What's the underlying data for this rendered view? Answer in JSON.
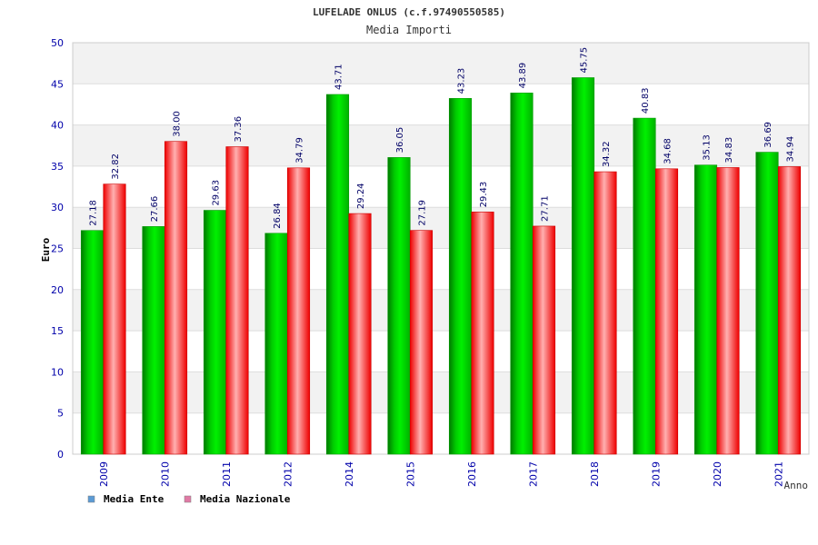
{
  "chart_data": {
    "type": "bar",
    "title": "LUFELADE ONLUS (c.f.97490550585)",
    "subtitle": "Media Importi",
    "ylabel": "Euro",
    "xlabel": "Anno",
    "ylim": [
      0,
      50
    ],
    "yticks": [
      0,
      5,
      10,
      15,
      20,
      25,
      30,
      35,
      40,
      45,
      50
    ],
    "categories": [
      "2009",
      "2010",
      "2011",
      "2012",
      "2014",
      "2015",
      "2016",
      "2017",
      "2018",
      "2019",
      "2020",
      "2021"
    ],
    "series": [
      {
        "name": "Media Ente",
        "values": [
          27.18,
          27.66,
          29.63,
          26.84,
          43.71,
          36.05,
          43.23,
          43.89,
          45.75,
          40.83,
          35.13,
          36.69
        ],
        "labels": [
          "27.18",
          "27.66",
          "29.63",
          "26.84",
          "43.71",
          "36.05",
          "43.23",
          "43.89",
          "45.75",
          "40.83",
          "35.13",
          "36.69"
        ]
      },
      {
        "name": "Media Nazionale",
        "values": [
          32.82,
          38.0,
          37.36,
          34.79,
          29.24,
          27.19,
          29.43,
          27.71,
          34.32,
          34.68,
          34.83,
          34.94
        ],
        "labels": [
          "32.82",
          "38.00",
          "37.36",
          "34.79",
          "29.24",
          "27.19",
          "29.43",
          "27.71",
          "34.32",
          "34.68",
          "34.83",
          "34.94"
        ]
      }
    ],
    "legend": [
      {
        "label": "Media Ente",
        "color": "#5b9bd5"
      },
      {
        "label": "Media Nazionale",
        "color": "#e07aa5"
      }
    ],
    "colors": {
      "ente_dark": "#006600",
      "ente_light": "#00ee00",
      "naz_dark": "#dd0000",
      "naz_light": "#ffb0b0",
      "axis_text": "#0000aa",
      "band": "#f2f2f2"
    }
  }
}
